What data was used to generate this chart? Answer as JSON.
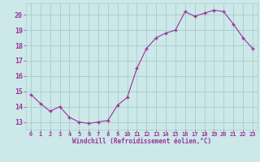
{
  "x": [
    0,
    1,
    2,
    3,
    4,
    5,
    6,
    7,
    8,
    9,
    10,
    11,
    12,
    13,
    14,
    15,
    16,
    17,
    18,
    19,
    20,
    21,
    22,
    23
  ],
  "y": [
    14.8,
    14.2,
    13.7,
    14.0,
    13.3,
    13.0,
    12.9,
    13.0,
    13.1,
    14.1,
    14.6,
    16.5,
    17.8,
    18.5,
    18.8,
    19.0,
    20.2,
    19.9,
    20.1,
    20.3,
    20.2,
    19.4,
    18.5,
    17.8
  ],
  "xlabel": "Windchill (Refroidissement éolien,°C)",
  "xlim": [
    -0.5,
    23.5
  ],
  "ylim": [
    12.5,
    20.75
  ],
  "yticks": [
    13,
    14,
    15,
    16,
    17,
    18,
    19,
    20
  ],
  "xticks": [
    0,
    1,
    2,
    3,
    4,
    5,
    6,
    7,
    8,
    9,
    10,
    11,
    12,
    13,
    14,
    15,
    16,
    17,
    18,
    19,
    20,
    21,
    22,
    23
  ],
  "line_color": "#993399",
  "marker": "+",
  "bg_color": "#cce8e8",
  "grid_color": "#aacccc",
  "text_color": "#993399",
  "tick_fontsize": 5,
  "xlabel_fontsize": 5.5
}
